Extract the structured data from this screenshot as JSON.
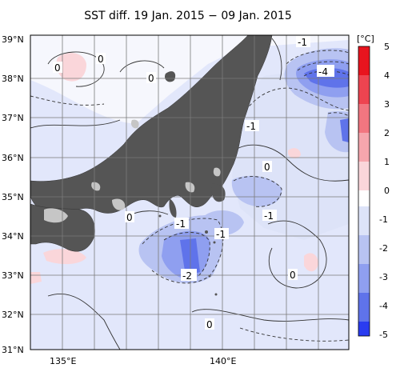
{
  "title": "SST diff. 19 Jan. 2015 − 09 Jan. 2015",
  "lat_labels": [
    "39°N",
    "38°N",
    "37°N",
    "36°N",
    "35°N",
    "34°N",
    "33°N",
    "32°N",
    "31°N"
  ],
  "lon_labels": [
    "135°E",
    "140°E"
  ],
  "contour_labels": [
    "0",
    "0",
    "0",
    "-1",
    "-4",
    "-1",
    "0",
    "0",
    "-1",
    "-1",
    "-1",
    "-2",
    "0",
    "0"
  ],
  "colorbar": {
    "unit": "[°C]",
    "ticks": [
      "5",
      "4",
      "3",
      "2",
      "1",
      "0",
      "-1",
      "-2",
      "-3",
      "-4",
      "-5"
    ],
    "colors": [
      "#e8141e",
      "#ee4450",
      "#f27680",
      "#f6a6ad",
      "#fad6da",
      "#ffffff",
      "#dde3f8",
      "#b8c3f2",
      "#8f9ff0",
      "#5f73ea",
      "#2a3cf0"
    ]
  },
  "colors": {
    "land": "#555555",
    "inland_fill": "#c6c6c6",
    "grid": "#7a7a7a"
  }
}
